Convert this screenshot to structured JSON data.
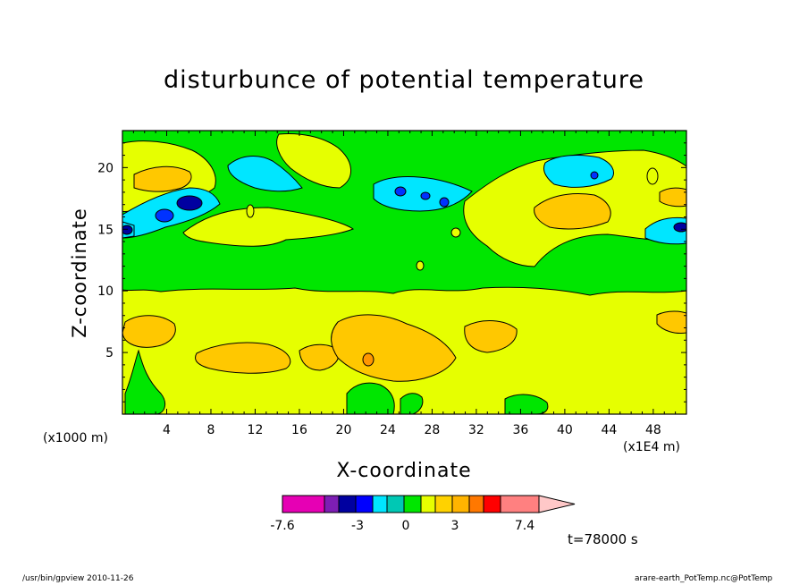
{
  "chart_data": {
    "type": "heatmap",
    "title": "disturbunce of potential temperature",
    "xlabel": "X-coordinate",
    "ylabel": "Z-coordinate",
    "x_unit": "(x1E4 m)",
    "y_unit": "(x1000 m)",
    "xlim": [
      0,
      51
    ],
    "ylim": [
      0,
      23
    ],
    "x_ticks": [
      "4",
      "8",
      "12",
      "16",
      "20",
      "24",
      "28",
      "32",
      "36",
      "40",
      "44",
      "48"
    ],
    "y_ticks": [
      "5",
      "10",
      "15",
      "20"
    ],
    "time_label": "t=78000 s",
    "colorbar": {
      "colors": [
        "#e600b4",
        "#7d1eb4",
        "#0000a0",
        "#0000ff",
        "#00e6ff",
        "#00c8b4",
        "#00e600",
        "#e6ff00",
        "#ffd200",
        "#ffb400",
        "#ff7800",
        "#ff0000",
        "#ff8080"
      ],
      "overflow_color": "#ffc8c8",
      "labels": [
        "-7.6",
        "-3",
        "0",
        "3",
        "7.4"
      ]
    },
    "background_color": "#e6ff00",
    "colors": {
      "green": "#00e600",
      "yellow": "#e6ff00",
      "orange": "#ffc800",
      "dark_orange": "#ff9600",
      "cyan": "#00e6ff",
      "blue": "#0032ff",
      "navy": "#0000a0"
    }
  },
  "footer": {
    "left": "/usr/bin/gpview   2010-11-26",
    "right": "arare-earth_PotTemp.nc@PotTemp"
  }
}
